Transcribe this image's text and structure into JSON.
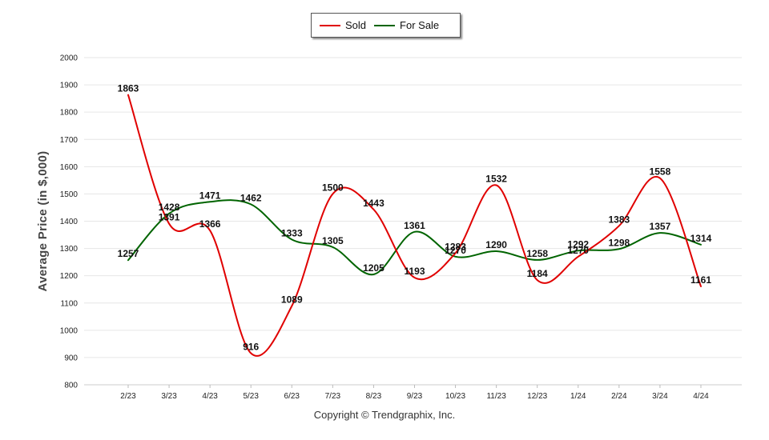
{
  "chart_data": {
    "type": "line",
    "categories": [
      "2/23",
      "3/23",
      "4/23",
      "5/23",
      "6/23",
      "7/23",
      "8/23",
      "9/23",
      "10/23",
      "11/23",
      "12/23",
      "1/24",
      "2/24",
      "3/24",
      "4/24"
    ],
    "series": [
      {
        "name": "Sold",
        "color": "#e00000",
        "values": [
          1863,
          1391,
          1366,
          916,
          1089,
          1500,
          1443,
          1193,
          1283,
          1532,
          1184,
          1270,
          1383,
          1558,
          1161
        ]
      },
      {
        "name": "For Sale",
        "color": "#006400",
        "values": [
          1257,
          1428,
          1471,
          1462,
          1333,
          1305,
          1205,
          1361,
          1270,
          1290,
          1258,
          1292,
          1298,
          1357,
          1314
        ]
      }
    ],
    "ylabel": "Average Price (in $,000)",
    "ylim": [
      800,
      2000
    ],
    "yticks": [
      800,
      900,
      1000,
      1100,
      1200,
      1300,
      1400,
      1500,
      1600,
      1700,
      1800,
      1900,
      2000
    ],
    "grid": true,
    "legend": "top-center"
  },
  "footer": "Copyright © Trendgraphix, Inc."
}
